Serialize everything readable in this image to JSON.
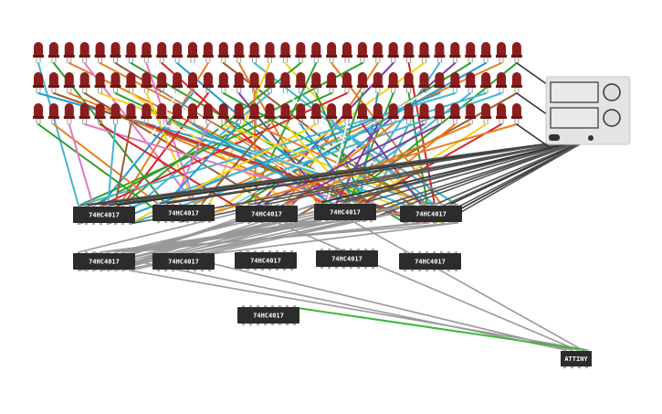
{
  "chips": [
    {
      "label": "74HC4017"
    },
    {
      "label": "74HC4017"
    },
    {
      "label": "74HC4017"
    },
    {
      "label": "74HC4017"
    },
    {
      "label": "74HC4017"
    },
    {
      "label": "74HC4017"
    },
    {
      "label": "74HC4017"
    },
    {
      "label": "74HC4017"
    },
    {
      "label": "74HC4017"
    },
    {
      "label": "74HC4017"
    },
    {
      "label": "74HC4017"
    }
  ],
  "microcontroller": {
    "label": "ATTINY"
  }
}
